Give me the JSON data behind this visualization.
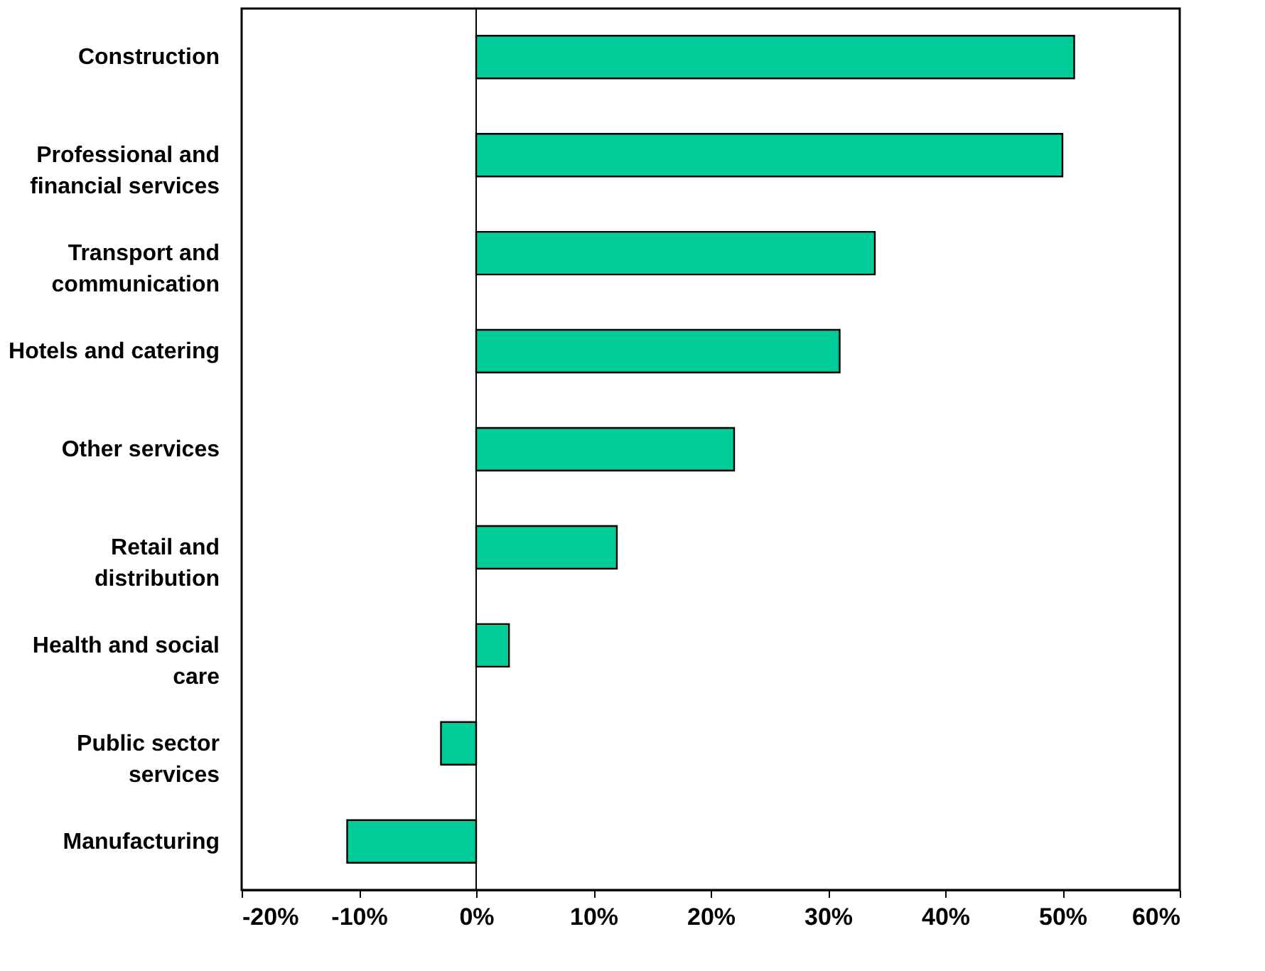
{
  "chart_data": {
    "type": "bar",
    "orientation": "horizontal",
    "categories": [
      "Construction",
      "Professional and\nfinancial services",
      "Transport and\ncommunication",
      "Hotels and catering",
      "Other services",
      "Retail and\ndistribution",
      "Health and social\ncare",
      "Public sector\nservices",
      "Manufacturing"
    ],
    "values": [
      51,
      50,
      34,
      31,
      22,
      12,
      2.8,
      -3,
      -11
    ],
    "color": "#00cc99",
    "xlim": [
      -20,
      60
    ],
    "xticks": [
      {
        "value": -20,
        "label": "-20%"
      },
      {
        "value": -10,
        "label": "-10%"
      },
      {
        "value": 0,
        "label": "0%"
      },
      {
        "value": 10,
        "label": "10%"
      },
      {
        "value": 20,
        "label": "20%"
      },
      {
        "value": 30,
        "label": "30%"
      },
      {
        "value": 40,
        "label": "40%"
      },
      {
        "value": 50,
        "label": "50%"
      },
      {
        "value": 60,
        "label": "60%"
      }
    ]
  }
}
